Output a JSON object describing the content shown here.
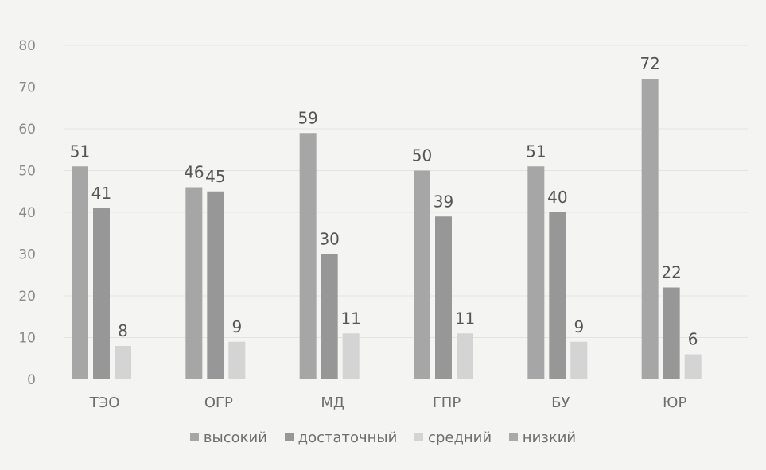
{
  "chart_data": {
    "type": "bar",
    "categories": [
      "ТЭО",
      "ОГР",
      "МД",
      "ГПР",
      "БУ",
      "ЮР"
    ],
    "series": [
      {
        "name": "высокий",
        "values": [
          51,
          46,
          59,
          50,
          51,
          72
        ],
        "color": "#a6a6a6"
      },
      {
        "name": "достаточный",
        "values": [
          41,
          45,
          30,
          39,
          40,
          22
        ],
        "color": "#979797"
      },
      {
        "name": "средний",
        "values": [
          8,
          9,
          11,
          11,
          9,
          6
        ],
        "color": "#d4d4d4"
      },
      {
        "name": "низкий",
        "values": [
          null,
          null,
          null,
          null,
          null,
          null
        ],
        "color": "#a9a9a9"
      }
    ],
    "ylim": [
      0,
      80
    ],
    "yticks": [
      0,
      10,
      20,
      30,
      40,
      50,
      60,
      70,
      80
    ],
    "grid": true,
    "legend_position": "bottom",
    "title": "",
    "xlabel": "",
    "ylabel": ""
  }
}
